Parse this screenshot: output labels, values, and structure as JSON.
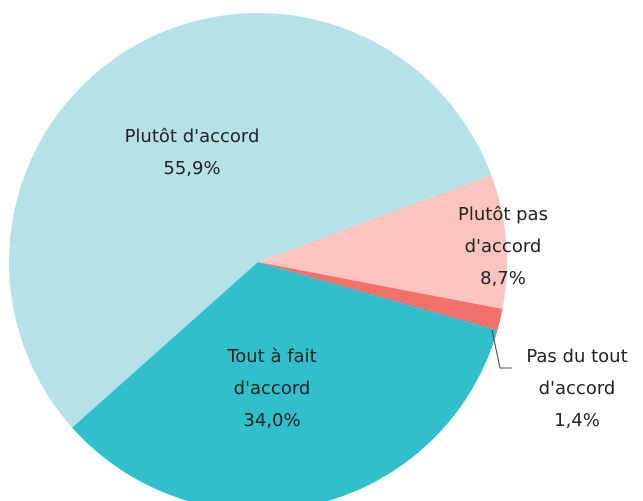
{
  "chart_data": {
    "type": "pie",
    "categories": [
      "Tout à fait d'accord",
      "Plutôt d'accord",
      "Plutôt pas d'accord",
      "Pas du tout d'accord"
    ],
    "values": [
      34.0,
      55.9,
      8.7,
      1.4
    ],
    "value_labels": [
      "34,0%",
      "55,9%",
      "8,7%",
      "1,4%"
    ],
    "colors": [
      "#31bfcc",
      "#b5e1e8",
      "#fdc5bd",
      "#f4706a"
    ]
  }
}
